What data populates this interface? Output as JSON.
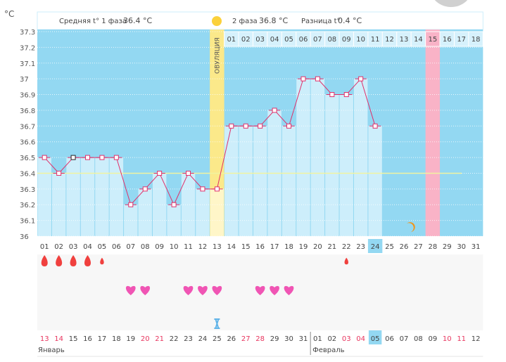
{
  "header": {
    "unit": "°C",
    "phase1_label": "Средняя t° 1 фаза",
    "phase1_value": "36.4 °C",
    "phase2_label": "2 фаза",
    "phase2_value": "36.8 °C",
    "diff_label": "Разница t°",
    "diff_value": "0.4 °C",
    "ovulation_label": "ОВУЛЯЦИЯ"
  },
  "chart_data": {
    "type": "bar",
    "ylim": [
      36,
      37.3
    ],
    "y_ticks": [
      "37.3",
      "37.2",
      "37.1",
      "37",
      "36.9",
      "36.8",
      "36.7",
      "36.6",
      "36.5",
      "36.4",
      "36.3",
      "36.2",
      "36.1",
      "36"
    ],
    "cycle_days": [
      "01",
      "02",
      "03",
      "04",
      "05",
      "06",
      "07",
      "08",
      "09",
      "10",
      "11",
      "12",
      "13",
      "14",
      "15",
      "16",
      "17",
      "18",
      "19",
      "20",
      "21",
      "22",
      "23",
      "24",
      "25",
      "26",
      "27",
      "28",
      "29",
      "30",
      "31"
    ],
    "post_ovulation_days": [
      "01",
      "02",
      "03",
      "04",
      "05",
      "06",
      "07",
      "08",
      "09",
      "10",
      "11",
      "12",
      "13",
      "14",
      "15",
      "16",
      "17",
      "18"
    ],
    "temperatures": [
      36.5,
      36.4,
      36.5,
      36.5,
      36.5,
      36.5,
      36.2,
      36.3,
      36.4,
      36.2,
      36.4,
      36.3,
      36.3,
      36.7,
      36.7,
      36.7,
      36.8,
      36.7,
      37.0,
      37.0,
      36.9,
      36.9,
      37.0,
      36.7
    ],
    "coverline": 36.4,
    "ovulation_day": 13,
    "expected_period_day": 28,
    "today_day": 24,
    "moon_day": 26
  },
  "markers": {
    "bleeding_days": [
      1,
      2,
      3,
      4,
      5,
      22
    ],
    "light_bleeding_days": [
      5,
      22
    ],
    "sex_days": [
      7,
      8,
      11,
      12,
      13,
      16,
      17,
      18
    ],
    "test_day": 13
  },
  "dates": [
    "13",
    "14",
    "15",
    "16",
    "17",
    "18",
    "19",
    "20",
    "21",
    "22",
    "23",
    "24",
    "25",
    "26",
    "27",
    "28",
    "29",
    "30",
    "31",
    "01",
    "02",
    "03",
    "04",
    "05",
    "06",
    "07",
    "08",
    "09",
    "10",
    "11",
    "12"
  ],
  "weekend_dates": [
    0,
    1,
    7,
    8,
    14,
    15,
    21,
    22,
    28,
    29
  ],
  "months": {
    "jan": "Январь",
    "feb": "Февраль"
  },
  "colors": {
    "sky": "#93d8f2",
    "bar": "#cdeefb",
    "line": "#e0306a",
    "ovulation": "#fbe98a",
    "period": "#f9b3c7",
    "weekend": "#e8365f"
  }
}
